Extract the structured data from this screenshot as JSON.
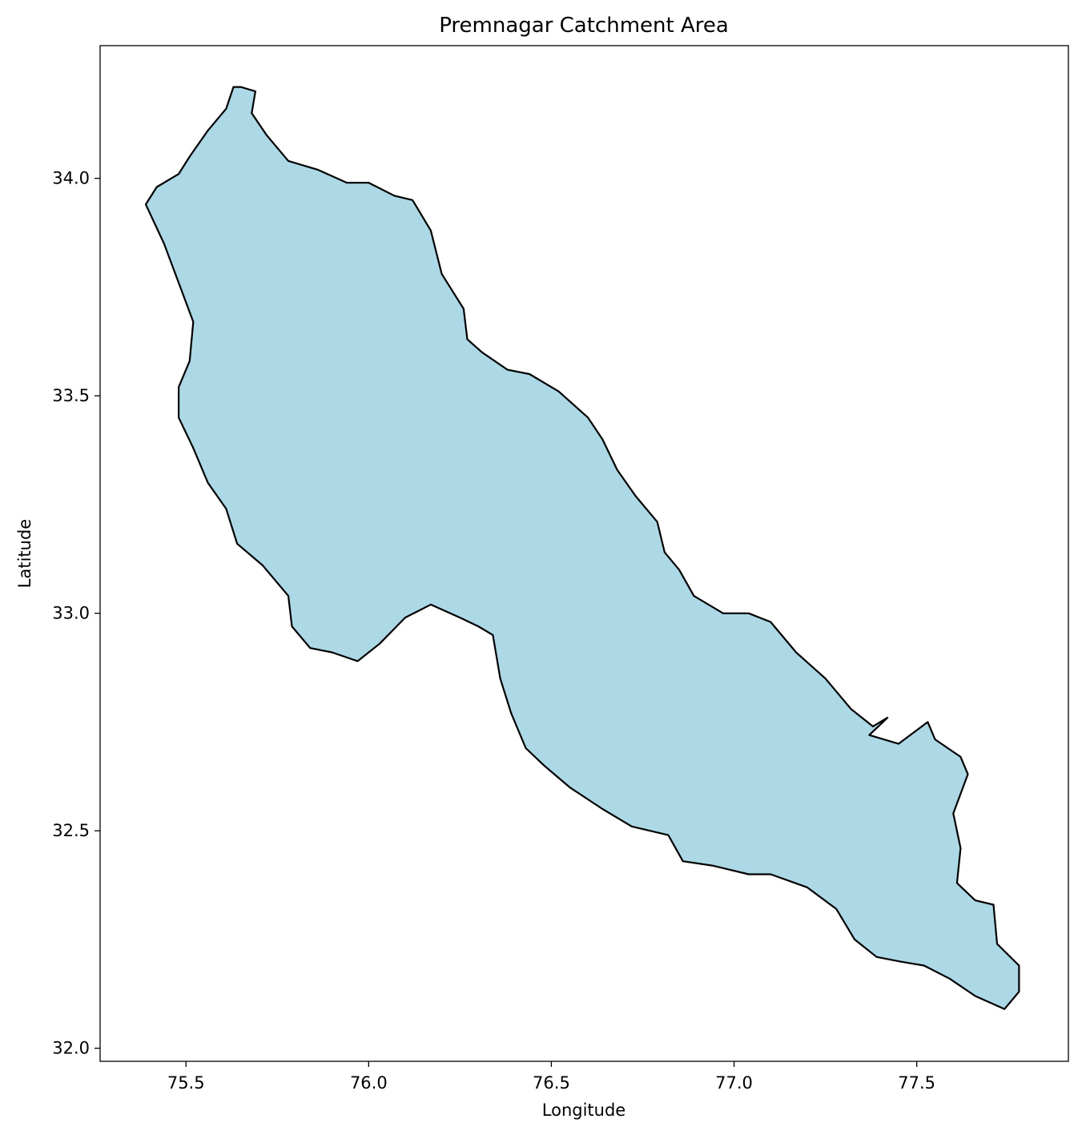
{
  "chart_data": {
    "type": "map",
    "title": "Premnagar Catchment Area",
    "xlabel": "Longitude",
    "ylabel": "Latitude",
    "xlim": [
      75.265,
      77.915
    ],
    "ylim": [
      31.97,
      34.305
    ],
    "x_ticks": [
      {
        "value": 75.5,
        "label": "75.5"
      },
      {
        "value": 76.0,
        "label": "76.0"
      },
      {
        "value": 76.5,
        "label": "76.5"
      },
      {
        "value": 77.0,
        "label": "77.0"
      },
      {
        "value": 77.5,
        "label": "77.5"
      }
    ],
    "y_ticks": [
      {
        "value": 32.0,
        "label": "32.0"
      },
      {
        "value": 32.5,
        "label": "32.5"
      },
      {
        "value": 33.0,
        "label": "33.0"
      },
      {
        "value": 33.5,
        "label": "33.5"
      },
      {
        "value": 34.0,
        "label": "34.0"
      }
    ],
    "grid": false,
    "fill_color": "#add8e6",
    "edge_color": "#000000",
    "boundary": [
      [
        75.65,
        34.21
      ],
      [
        75.69,
        34.2
      ],
      [
        75.68,
        34.15
      ],
      [
        75.72,
        34.1
      ],
      [
        75.78,
        34.04
      ],
      [
        75.86,
        34.02
      ],
      [
        75.94,
        33.99
      ],
      [
        76.0,
        33.99
      ],
      [
        76.07,
        33.96
      ],
      [
        76.12,
        33.95
      ],
      [
        76.17,
        33.88
      ],
      [
        76.2,
        33.78
      ],
      [
        76.26,
        33.7
      ],
      [
        76.27,
        33.63
      ],
      [
        76.31,
        33.6
      ],
      [
        76.38,
        33.56
      ],
      [
        76.44,
        33.55
      ],
      [
        76.52,
        33.51
      ],
      [
        76.6,
        33.45
      ],
      [
        76.64,
        33.4
      ],
      [
        76.68,
        33.33
      ],
      [
        76.73,
        33.27
      ],
      [
        76.79,
        33.21
      ],
      [
        76.81,
        33.14
      ],
      [
        76.85,
        33.1
      ],
      [
        76.89,
        33.04
      ],
      [
        76.97,
        33.0
      ],
      [
        77.04,
        33.0
      ],
      [
        77.1,
        32.98
      ],
      [
        77.17,
        32.91
      ],
      [
        77.25,
        32.85
      ],
      [
        77.32,
        32.78
      ],
      [
        77.38,
        32.74
      ],
      [
        77.42,
        32.76
      ],
      [
        77.37,
        32.72
      ],
      [
        77.45,
        32.7
      ],
      [
        77.53,
        32.75
      ],
      [
        77.55,
        32.71
      ],
      [
        77.62,
        32.67
      ],
      [
        77.64,
        32.63
      ],
      [
        77.6,
        32.54
      ],
      [
        77.62,
        32.46
      ],
      [
        77.61,
        32.38
      ],
      [
        77.66,
        32.34
      ],
      [
        77.71,
        32.33
      ],
      [
        77.72,
        32.24
      ],
      [
        77.78,
        32.19
      ],
      [
        77.78,
        32.13
      ],
      [
        77.74,
        32.09
      ],
      [
        77.66,
        32.12
      ],
      [
        77.59,
        32.16
      ],
      [
        77.52,
        32.19
      ],
      [
        77.45,
        32.2
      ],
      [
        77.39,
        32.21
      ],
      [
        77.33,
        32.25
      ],
      [
        77.28,
        32.32
      ],
      [
        77.2,
        32.37
      ],
      [
        77.1,
        32.4
      ],
      [
        77.04,
        32.4
      ],
      [
        76.94,
        32.42
      ],
      [
        76.86,
        32.43
      ],
      [
        76.82,
        32.49
      ],
      [
        76.72,
        32.51
      ],
      [
        76.64,
        32.55
      ],
      [
        76.55,
        32.6
      ],
      [
        76.48,
        32.65
      ],
      [
        76.43,
        32.69
      ],
      [
        76.39,
        32.77
      ],
      [
        76.36,
        32.85
      ],
      [
        76.34,
        32.95
      ],
      [
        76.3,
        32.97
      ],
      [
        76.25,
        32.99
      ],
      [
        76.17,
        33.02
      ],
      [
        76.1,
        32.99
      ],
      [
        76.03,
        32.93
      ],
      [
        75.97,
        32.89
      ],
      [
        75.9,
        32.91
      ],
      [
        75.84,
        32.92
      ],
      [
        75.79,
        32.97
      ],
      [
        75.78,
        33.04
      ],
      [
        75.71,
        33.11
      ],
      [
        75.64,
        33.16
      ],
      [
        75.61,
        33.24
      ],
      [
        75.56,
        33.3
      ],
      [
        75.52,
        33.38
      ],
      [
        75.48,
        33.45
      ],
      [
        75.48,
        33.52
      ],
      [
        75.51,
        33.58
      ],
      [
        75.52,
        33.67
      ],
      [
        75.48,
        33.76
      ],
      [
        75.44,
        33.85
      ],
      [
        75.39,
        33.94
      ],
      [
        75.42,
        33.98
      ],
      [
        75.48,
        34.01
      ],
      [
        75.51,
        34.05
      ],
      [
        75.56,
        34.11
      ],
      [
        75.61,
        34.16
      ],
      [
        75.63,
        34.21
      ]
    ]
  }
}
